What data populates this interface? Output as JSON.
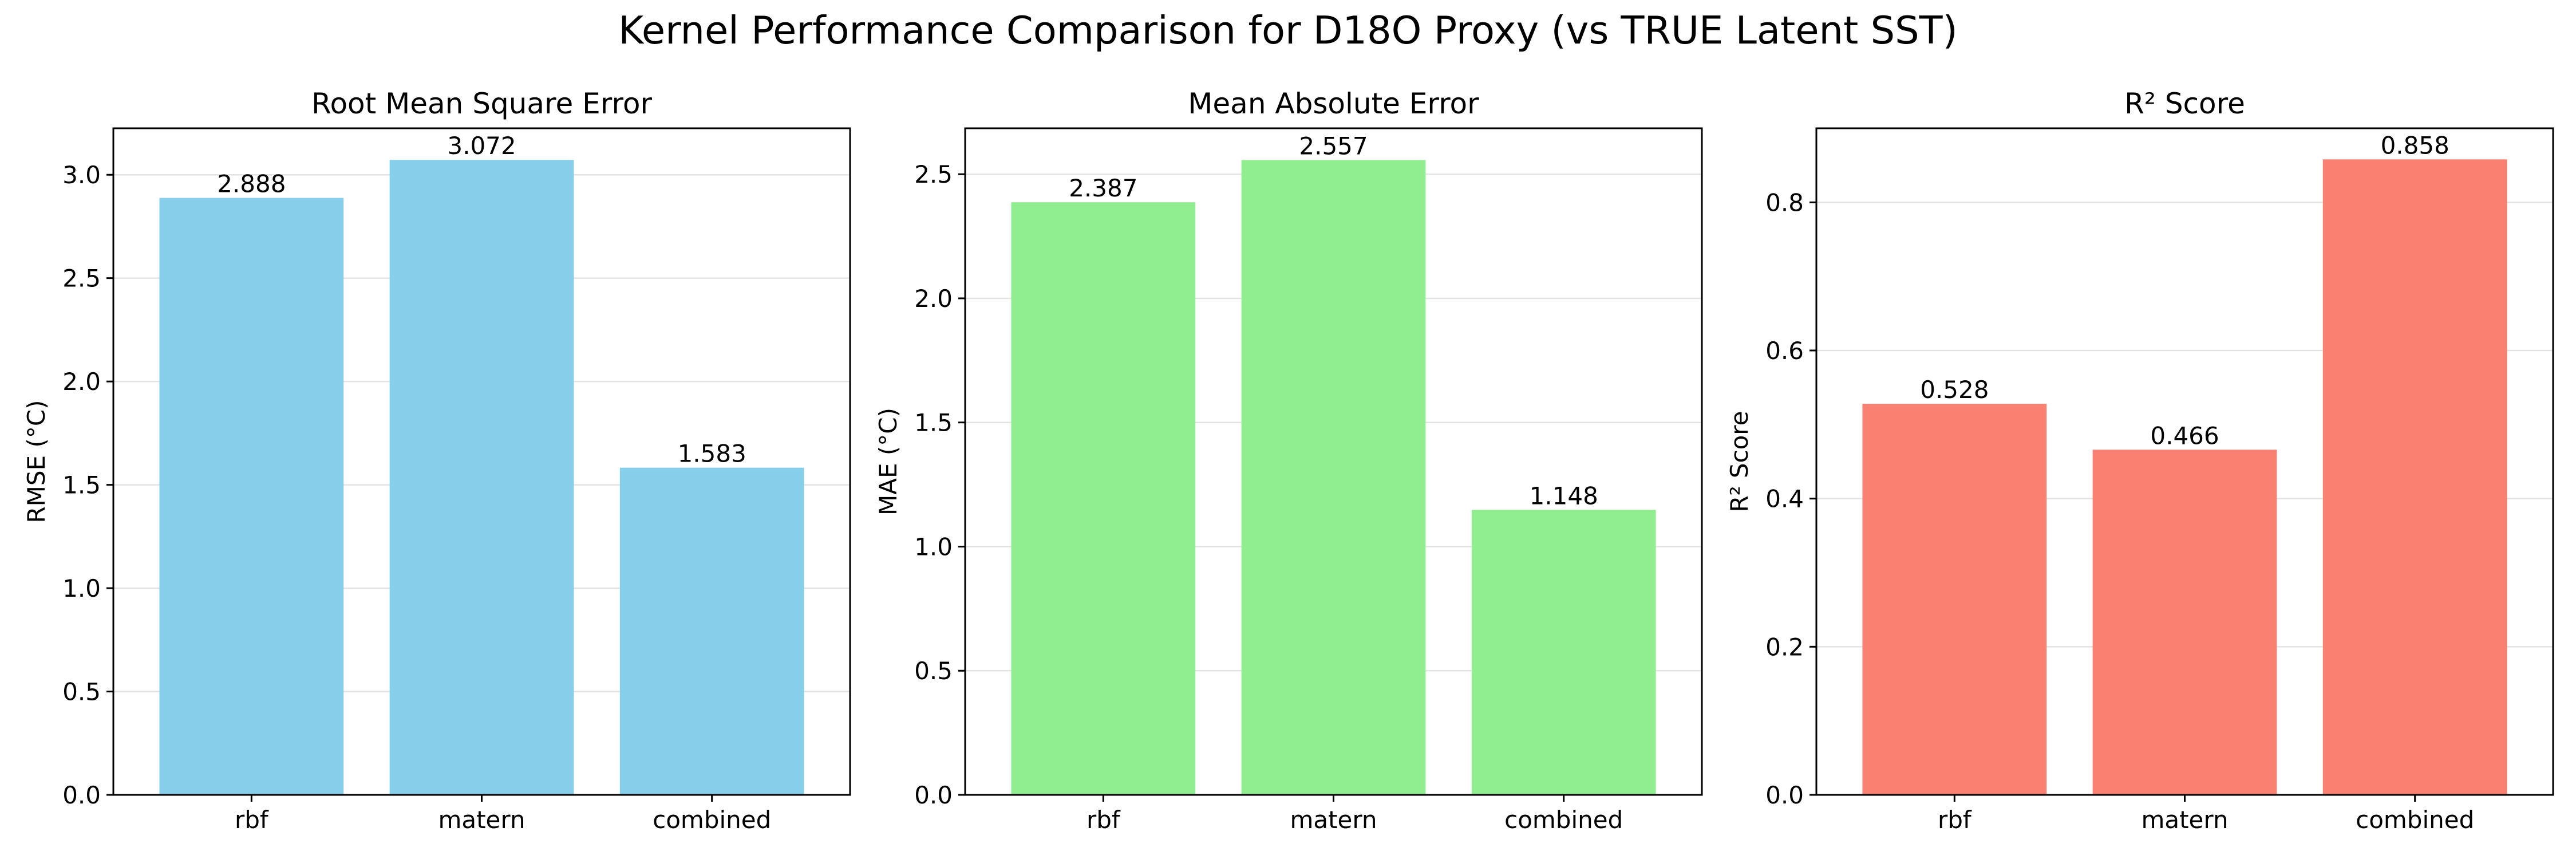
{
  "suptitle": "Kernel Performance Comparison for D18O Proxy (vs TRUE Latent SST)",
  "chart_data": [
    {
      "type": "bar",
      "title": "Root Mean Square Error",
      "xlabel": "",
      "ylabel": "RMSE (°C)",
      "categories": [
        "rbf",
        "matern",
        "combined"
      ],
      "values": [
        2.888,
        3.072,
        1.583
      ],
      "value_labels": [
        "2.888",
        "3.072",
        "1.583"
      ],
      "ylim": [
        0,
        3.225
      ],
      "yticks": [
        0.0,
        0.5,
        1.0,
        1.5,
        2.0,
        2.5,
        3.0
      ],
      "ytick_labels": [
        "0.0",
        "0.5",
        "1.0",
        "1.5",
        "2.0",
        "2.5",
        "3.0"
      ],
      "color": "#87ceeb",
      "grid": "y"
    },
    {
      "type": "bar",
      "title": "Mean Absolute Error",
      "xlabel": "",
      "ylabel": "MAE (°C)",
      "categories": [
        "rbf",
        "matern",
        "combined"
      ],
      "values": [
        2.387,
        2.557,
        1.148
      ],
      "value_labels": [
        "2.387",
        "2.557",
        "1.148"
      ],
      "ylim": [
        0,
        2.685
      ],
      "yticks": [
        0.0,
        0.5,
        1.0,
        1.5,
        2.0,
        2.5
      ],
      "ytick_labels": [
        "0.0",
        "0.5",
        "1.0",
        "1.5",
        "2.0",
        "2.5"
      ],
      "color": "#90ee90",
      "grid": "y"
    },
    {
      "type": "bar",
      "title": "R² Score",
      "xlabel": "",
      "ylabel": "R² Score",
      "categories": [
        "rbf",
        "matern",
        "combined"
      ],
      "values": [
        0.528,
        0.466,
        0.858
      ],
      "value_labels": [
        "0.528",
        "0.466",
        "0.858"
      ],
      "ylim": [
        0,
        0.9
      ],
      "yticks": [
        0.0,
        0.2,
        0.4,
        0.6,
        0.8
      ],
      "ytick_labels": [
        "0.0",
        "0.2",
        "0.4",
        "0.6",
        "0.8"
      ],
      "color": "#fa8072",
      "grid": "y"
    }
  ]
}
